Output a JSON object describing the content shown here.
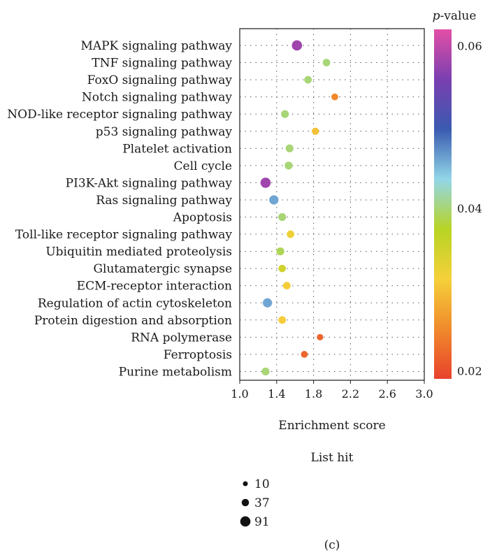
{
  "chart_data": {
    "type": "scatter",
    "xlabel": "Enrichment score",
    "xlim": [
      1.0,
      3.0
    ],
    "xticks": [
      "1.0",
      "1.4",
      "1.8",
      "2.2",
      "2.6",
      "3.0"
    ],
    "grid": true,
    "categories": [
      "MAPK signaling pathway",
      "TNF signaling pathway",
      "FoxO signaling pathway",
      "Notch signaling pathway",
      "NOD-like receptor signaling pathway",
      "p53 signaling pathway",
      "Platelet activation",
      "Cell cycle",
      "PI3K-Akt signaling pathway",
      "Ras signaling pathway",
      "Apoptosis",
      "Toll-like receptor signaling pathway",
      "Ubiquitin mediated proteolysis",
      "Glutamatergic synapse",
      "ECM-receptor interaction",
      "Regulation of actin cytoskeleton",
      "Protein digestion and absorption",
      "RNA polymerase",
      "Ferroptosis",
      "Purine metabolism"
    ],
    "enrichment_score": [
      1.62,
      1.94,
      1.74,
      2.03,
      1.49,
      1.82,
      1.54,
      1.53,
      1.28,
      1.37,
      1.46,
      1.55,
      1.44,
      1.46,
      1.51,
      1.3,
      1.46,
      1.87,
      1.7,
      1.28
    ],
    "p_value": [
      0.058,
      0.04,
      0.04,
      0.025,
      0.04,
      0.03,
      0.04,
      0.04,
      0.058,
      0.046,
      0.04,
      0.032,
      0.039,
      0.035,
      0.031,
      0.046,
      0.031,
      0.022,
      0.022,
      0.04
    ],
    "list_hit": [
      91,
      40,
      40,
      30,
      45,
      35,
      45,
      45,
      91,
      70,
      45,
      40,
      45,
      38,
      40,
      70,
      40,
      25,
      30,
      45
    ],
    "color_legend": {
      "title_italic": "p",
      "title_rest": "-value",
      "ticks": [
        "0.06",
        "0.04",
        "0.02"
      ],
      "tick_values": [
        0.06,
        0.04,
        0.02
      ],
      "range": [
        0.019,
        0.062
      ],
      "colors": [
        "#e8422c",
        "#f08a2c",
        "#f5d03a",
        "#b8d424",
        "#92d6e8",
        "#3a5ab0",
        "#7a3fb0",
        "#e34fa6"
      ]
    },
    "size_legend": {
      "title": "List hit",
      "items": [
        {
          "label": "10",
          "value": 10
        },
        {
          "label": "37",
          "value": 37
        },
        {
          "label": "91",
          "value": 91
        }
      ]
    },
    "panel_label": "(c)"
  }
}
